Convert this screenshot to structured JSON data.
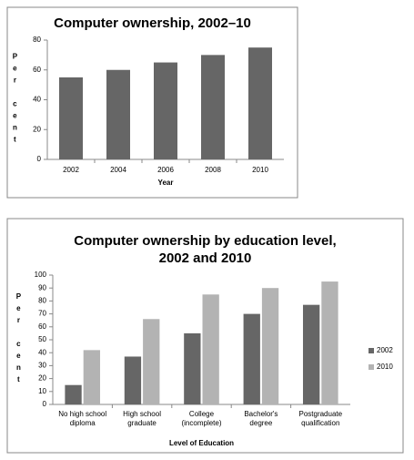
{
  "chart_data": [
    {
      "type": "bar",
      "title": [
        "Computer ownership, 2002–10"
      ],
      "xlabel": "Year",
      "ylabel": "Per cent",
      "categories": [
        "2002",
        "2004",
        "2006",
        "2008",
        "2010"
      ],
      "values": [
        55,
        60,
        65,
        70,
        75
      ],
      "color": "#666666",
      "ylim": [
        0,
        80
      ],
      "yticks": [
        0,
        20,
        40,
        60,
        80
      ]
    },
    {
      "type": "bar",
      "title": [
        "Computer ownership by education level,",
        "2002 and 2010"
      ],
      "xlabel": "Level of Education",
      "ylabel": "Per cent",
      "categories": [
        "No high school diploma",
        "High school graduate",
        "College (incomplete)",
        "Bachelor's degree",
        "Postgraduate qualification"
      ],
      "series": [
        {
          "name": "2002",
          "color": "#666666",
          "values": [
            15,
            37,
            55,
            70,
            77
          ]
        },
        {
          "name": "2010",
          "color": "#b3b3b3",
          "values": [
            42,
            66,
            85,
            90,
            95
          ]
        }
      ],
      "ylim": [
        0,
        100
      ],
      "yticks": [
        0,
        10,
        20,
        30,
        40,
        50,
        60,
        70,
        80,
        90,
        100
      ],
      "legend": "right"
    }
  ]
}
